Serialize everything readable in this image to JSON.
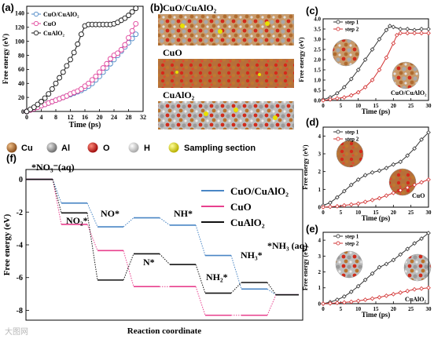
{
  "panel_labels": {
    "a": "(a)",
    "b": "(b)",
    "c": "(c)",
    "d": "(d)",
    "e": "(e)",
    "f": "(f)"
  },
  "legend": {
    "items": [
      {
        "label": "Cu",
        "color": "#b8742e"
      },
      {
        "label": "Al",
        "color": "#9a9a9a"
      },
      {
        "label": "O",
        "color": "#d01818"
      },
      {
        "label": "H",
        "color": "#dcdcdc"
      },
      {
        "label": "Sampling section",
        "color": "#e8e000"
      }
    ]
  },
  "snapshots": {
    "titles": [
      "CuO/CuAlO₂",
      "CuO",
      "CuAlO₂"
    ]
  },
  "inset_labels": {
    "c": "CuO/CuAlO₂",
    "d": "CuO",
    "e": "CuAlO₂"
  },
  "watermark": "大图网",
  "chart_data": [
    {
      "id": "a",
      "type": "line",
      "xlabel": "Time (ps)",
      "ylabel": "Free energy (eV)",
      "xlim": [
        0,
        32
      ],
      "ylim": [
        0,
        150
      ],
      "xticks": [
        0,
        4,
        8,
        12,
        16,
        20,
        24,
        28,
        32
      ],
      "yticks": [
        0,
        20,
        40,
        60,
        80,
        100,
        120,
        140
      ],
      "legend_position": "top-left",
      "series": [
        {
          "name": "CuO/CuAlO₂",
          "color": "#4a86c5",
          "x": [
            0,
            1,
            2,
            3,
            4,
            5,
            6,
            7,
            8,
            9,
            10,
            11,
            12,
            13,
            14,
            15,
            16,
            17,
            18,
            19,
            20,
            21,
            22,
            23,
            24,
            25,
            26,
            27,
            28,
            29,
            30
          ],
          "y": [
            0,
            2,
            4,
            6,
            8,
            10,
            12,
            14,
            16,
            18,
            20,
            22,
            24,
            26,
            28,
            30,
            33,
            36,
            40,
            45,
            50,
            56,
            62,
            68,
            74,
            80,
            86,
            92,
            98,
            104,
            110
          ]
        },
        {
          "name": "CuO",
          "color": "#e0409a",
          "x": [
            0,
            1,
            2,
            3,
            4,
            5,
            6,
            7,
            8,
            9,
            10,
            11,
            12,
            13,
            14,
            15,
            16,
            17,
            18,
            19,
            20,
            21,
            22,
            23,
            24,
            25,
            26,
            27,
            28,
            29,
            30
          ],
          "y": [
            0,
            2,
            4,
            6,
            8,
            10,
            12,
            14,
            16,
            18,
            20,
            22,
            25,
            27,
            29,
            32,
            36,
            40,
            45,
            50,
            56,
            62,
            68,
            75,
            80,
            83,
            88,
            95,
            105,
            115,
            125
          ]
        },
        {
          "name": "CuAlO₂",
          "color": "#111111",
          "x": [
            0,
            1,
            2,
            3,
            4,
            5,
            6,
            7,
            8,
            9,
            10,
            11,
            12,
            13,
            14,
            15,
            16,
            17,
            18,
            19,
            20,
            21,
            22,
            23,
            24,
            25,
            26,
            27,
            28,
            29,
            30
          ],
          "y": [
            0,
            3,
            6,
            10,
            14,
            19,
            25,
            32,
            40,
            48,
            56,
            65,
            74,
            84,
            96,
            110,
            122,
            124,
            124,
            124,
            124,
            124,
            124,
            124,
            125,
            127,
            130,
            133,
            137,
            142,
            147
          ]
        }
      ]
    },
    {
      "id": "c",
      "type": "line",
      "xlabel": "Time (ps)",
      "ylabel": "Free energy (eV)",
      "xlim": [
        0,
        30
      ],
      "ylim": [
        0,
        4.0
      ],
      "xticks": [
        0,
        5,
        10,
        15,
        20,
        25,
        30
      ],
      "yticks": [
        0.0,
        0.5,
        1.0,
        1.5,
        2.0,
        2.5,
        3.0,
        3.5,
        4.0
      ],
      "legend_position": "top-left",
      "series": [
        {
          "name": "step 1",
          "color": "#333333",
          "x": [
            0,
            2,
            4,
            6,
            8,
            10,
            12,
            14,
            16,
            18,
            19,
            20,
            22,
            24,
            26,
            28,
            30
          ],
          "y": [
            0.05,
            0.15,
            0.35,
            0.65,
            1.05,
            1.5,
            2.0,
            2.5,
            3.0,
            3.45,
            3.65,
            3.6,
            3.5,
            3.5,
            3.45,
            3.5,
            3.5
          ]
        },
        {
          "name": "step 2",
          "color": "#d23030",
          "x": [
            0,
            2,
            4,
            6,
            8,
            10,
            12,
            14,
            16,
            18,
            20,
            21,
            22,
            24,
            26,
            28,
            30
          ],
          "y": [
            0.0,
            0.05,
            0.1,
            0.15,
            0.25,
            0.4,
            0.65,
            1.0,
            1.5,
            2.1,
            2.8,
            3.2,
            3.3,
            3.3,
            3.3,
            3.3,
            3.3
          ]
        }
      ]
    },
    {
      "id": "d",
      "type": "line",
      "xlabel": "Time (ps)",
      "ylabel": "Free energy (eV)",
      "xlim": [
        0,
        30
      ],
      "ylim": [
        0,
        4.5
      ],
      "xticks": [
        0,
        5,
        10,
        15,
        20,
        25,
        30
      ],
      "yticks": [
        0,
        1,
        2,
        3,
        4
      ],
      "legend_position": "top-left",
      "series": [
        {
          "name": "step 1",
          "color": "#333333",
          "x": [
            0,
            2,
            4,
            6,
            8,
            10,
            12,
            14,
            16,
            18,
            20,
            22,
            24,
            26,
            28,
            30
          ],
          "y": [
            0.1,
            0.25,
            0.55,
            0.9,
            1.25,
            1.55,
            1.8,
            1.95,
            2.05,
            2.2,
            2.4,
            2.55,
            2.9,
            3.3,
            3.8,
            4.2
          ]
        },
        {
          "name": "step 2",
          "color": "#d23030",
          "x": [
            0,
            2,
            4,
            6,
            8,
            10,
            12,
            14,
            16,
            18,
            20,
            22,
            24,
            26,
            28,
            30
          ],
          "y": [
            0.0,
            0.02,
            0.05,
            0.1,
            0.15,
            0.2,
            0.3,
            0.4,
            0.5,
            0.65,
            0.8,
            0.95,
            1.1,
            1.25,
            1.4,
            1.55
          ]
        }
      ]
    },
    {
      "id": "e",
      "type": "line",
      "xlabel": "Time (ps)",
      "ylabel": "Free energy (eV)",
      "xlim": [
        0,
        30
      ],
      "ylim": [
        0,
        4.5
      ],
      "xticks": [
        0,
        5,
        10,
        15,
        20,
        25,
        30
      ],
      "yticks": [
        0,
        1,
        2,
        3,
        4
      ],
      "legend_position": "top-left",
      "series": [
        {
          "name": "step 1",
          "color": "#333333",
          "x": [
            0,
            2,
            4,
            6,
            8,
            10,
            12,
            14,
            16,
            18,
            20,
            22,
            24,
            26,
            28,
            30
          ],
          "y": [
            0.0,
            0.1,
            0.25,
            0.45,
            0.75,
            1.1,
            1.5,
            1.9,
            2.3,
            2.5,
            2.75,
            3.1,
            3.45,
            3.8,
            4.1,
            4.45
          ]
        },
        {
          "name": "step 2",
          "color": "#d23030",
          "x": [
            0,
            2,
            4,
            6,
            8,
            10,
            12,
            14,
            16,
            18,
            20,
            22,
            24,
            26,
            28,
            30
          ],
          "y": [
            0.0,
            0.02,
            0.05,
            0.08,
            0.12,
            0.18,
            0.25,
            0.32,
            0.4,
            0.5,
            0.6,
            0.7,
            0.8,
            0.9,
            0.95,
            1.0
          ]
        }
      ]
    },
    {
      "id": "f",
      "type": "line",
      "xlabel": "Reaction coordinate",
      "ylabel": "Free energy (eV)",
      "ylim": [
        -8.6,
        0.6
      ],
      "yticks": [
        0,
        -2,
        -4,
        -6,
        -8
      ],
      "legend_position": "top-right",
      "species": [
        "*NO₃⁻(aq)",
        "NO₂*",
        "NO*",
        "N*",
        "NH*",
        "NH₂*",
        "NH₃*",
        "*NH₃ (aq)"
      ],
      "series": [
        {
          "name": "CuO/CuAlO₂",
          "color": "#4a86c5",
          "values": [
            0,
            -1.45,
            -2.9,
            -2.35,
            -2.8,
            -4.65,
            -6.7,
            -7.05
          ]
        },
        {
          "name": "CuO",
          "color": "#e8408e",
          "values": [
            0,
            -2.75,
            -4.35,
            -6.55,
            -6.55,
            -8.3,
            -8.3,
            -7.05
          ]
        },
        {
          "name": "CuAlO₂",
          "color": "#111111",
          "values": [
            0,
            -2.05,
            -6.15,
            -4.55,
            -5.2,
            -6.95,
            -6.3,
            -7.05
          ]
        }
      ]
    }
  ]
}
